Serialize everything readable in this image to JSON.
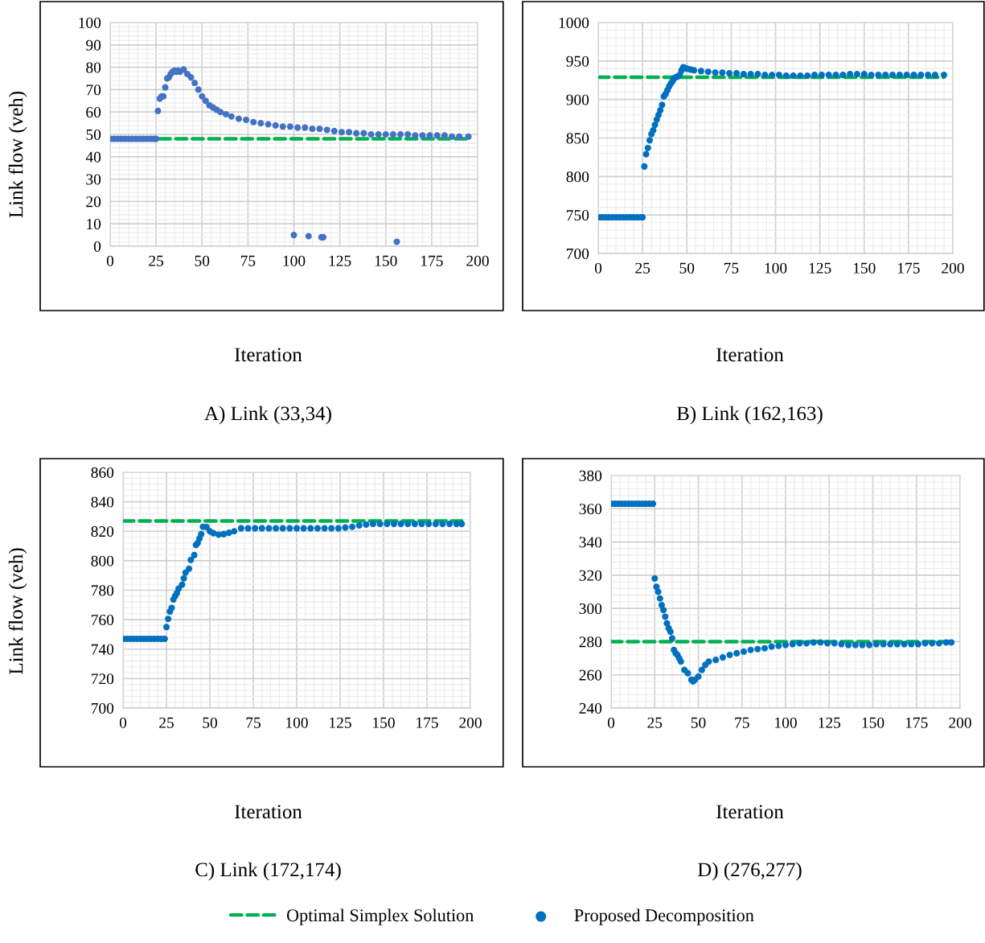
{
  "chart_data": [
    {
      "type": "scatter",
      "title": "A) Link (33,34)",
      "xlabel": "Iteration",
      "ylabel": "Link flow (veh)",
      "xlim": [
        0,
        200
      ],
      "xticks": [
        0,
        25,
        50,
        75,
        100,
        125,
        150,
        175,
        200
      ],
      "ylim": [
        0,
        100
      ],
      "yticks": [
        0,
        10,
        20,
        30,
        40,
        50,
        60,
        70,
        80,
        90,
        100
      ],
      "grid": true,
      "series": [
        {
          "type": "line",
          "marker": "none",
          "line_style": "dashed",
          "color": "#00b050",
          "x": [
            0,
            195
          ],
          "values": [
            48,
            48
          ]
        },
        {
          "marker": "circle",
          "color": "#4472c4",
          "x": [
            0,
            2,
            4,
            6,
            8,
            10,
            12,
            14,
            16,
            18,
            20,
            22,
            24,
            25,
            26,
            27,
            28,
            29,
            30,
            31,
            32,
            33,
            34,
            35,
            36,
            37,
            38,
            40,
            42,
            44,
            46,
            48,
            50,
            52,
            54,
            56,
            58,
            60,
            63,
            66,
            70,
            74,
            78,
            82,
            86,
            90,
            94,
            98,
            100,
            102,
            106,
            108,
            110,
            114,
            115,
            116,
            118,
            122,
            126,
            130,
            134,
            138,
            142,
            146,
            150,
            154,
            156,
            158,
            162,
            166,
            170,
            174,
            178,
            182,
            186,
            190,
            195
          ],
          "values": [
            48,
            48,
            48,
            48,
            48,
            48,
            48,
            48,
            48,
            48,
            48,
            48,
            48,
            48,
            60.5,
            66,
            67,
            67,
            71,
            75,
            75.5,
            77,
            78,
            78.5,
            78,
            78.5,
            78,
            79,
            77,
            75.5,
            73,
            70,
            67,
            65,
            63,
            62,
            61,
            60,
            59,
            58,
            57,
            56.5,
            55.5,
            55,
            54.5,
            54,
            53.5,
            53.5,
            5,
            53,
            53,
            4.5,
            52.5,
            52.5,
            4,
            4,
            52,
            51.5,
            51,
            51,
            50.5,
            50.5,
            50,
            50,
            50,
            50,
            2,
            50,
            50,
            49.5,
            49.5,
            49.5,
            49.5,
            49.5,
            49,
            49,
            49
          ]
        }
      ]
    },
    {
      "type": "scatter",
      "title": "B) Link (162,163)",
      "xlabel": "Iteration",
      "xlim": [
        0,
        200
      ],
      "xticks": [
        0,
        25,
        50,
        75,
        100,
        125,
        150,
        175,
        200
      ],
      "ylim": [
        700,
        1000
      ],
      "yticks": [
        700,
        750,
        800,
        850,
        900,
        950,
        1000
      ],
      "grid": true,
      "series": [
        {
          "type": "line",
          "marker": "none",
          "line_style": "dashed",
          "color": "#00b050",
          "x": [
            0,
            195
          ],
          "values": [
            929,
            929
          ]
        },
        {
          "marker": "circle",
          "color": "#0070c0",
          "x": [
            0,
            2,
            4,
            6,
            8,
            10,
            12,
            14,
            16,
            18,
            20,
            22,
            24,
            25,
            26,
            27,
            28,
            29,
            30,
            31,
            32,
            33,
            34,
            35,
            36,
            37,
            38,
            39,
            40,
            41,
            42,
            43,
            44,
            45,
            46,
            47,
            48,
            49,
            50,
            52,
            54,
            58,
            62,
            66,
            70,
            74,
            78,
            82,
            86,
            90,
            94,
            98,
            102,
            106,
            110,
            114,
            118,
            122,
            126,
            130,
            134,
            138,
            142,
            146,
            150,
            154,
            158,
            162,
            166,
            170,
            174,
            178,
            182,
            186,
            190,
            195
          ],
          "values": [
            747,
            747,
            747,
            747,
            747,
            747,
            747,
            747,
            747,
            747,
            747,
            747,
            747,
            747,
            813,
            829,
            837,
            847,
            855,
            860,
            867,
            874,
            880,
            886,
            893,
            904,
            907,
            912,
            917,
            921,
            924,
            928,
            929,
            930,
            932,
            938,
            942,
            941,
            940,
            939,
            938,
            937,
            936,
            935,
            935,
            934,
            934,
            933,
            933,
            933,
            932,
            932,
            932,
            931,
            931,
            931,
            931,
            932,
            932,
            932,
            932,
            932,
            933,
            933,
            933,
            932,
            932,
            932,
            932,
            932,
            932,
            932,
            932,
            932,
            932,
            932
          ]
        }
      ]
    },
    {
      "type": "scatter",
      "title": "C) Link (172,174)",
      "xlabel": "Iteration",
      "ylabel": "Link flow (veh)",
      "xlim": [
        0,
        200
      ],
      "xticks": [
        0,
        25,
        50,
        75,
        100,
        125,
        150,
        175,
        200
      ],
      "ylim": [
        700,
        860
      ],
      "yticks": [
        700,
        720,
        740,
        760,
        780,
        800,
        820,
        840,
        860
      ],
      "grid": true,
      "series": [
        {
          "type": "line",
          "marker": "none",
          "line_style": "dashed",
          "color": "#00b050",
          "x": [
            0,
            195
          ],
          "values": [
            827,
            827
          ]
        },
        {
          "marker": "circle",
          "color": "#0070c0",
          "x": [
            0,
            2,
            4,
            6,
            8,
            10,
            12,
            14,
            16,
            18,
            20,
            22,
            24,
            25,
            26,
            27,
            28,
            29,
            30,
            31,
            32,
            34,
            35,
            36,
            38,
            39,
            41,
            42,
            43,
            44,
            45,
            46,
            48,
            50,
            52,
            55,
            58,
            61,
            64,
            68,
            72,
            76,
            80,
            84,
            88,
            92,
            96,
            100,
            104,
            108,
            112,
            116,
            120,
            124,
            128,
            132,
            136,
            140,
            144,
            148,
            152,
            156,
            160,
            164,
            168,
            172,
            176,
            180,
            184,
            188,
            192,
            195
          ],
          "values": [
            747,
            747,
            747,
            747,
            747,
            747,
            747,
            747,
            747,
            747,
            747,
            747,
            747,
            755,
            760.5,
            765.5,
            768,
            773.7,
            776,
            778,
            781,
            783.7,
            788,
            791.9,
            794.6,
            800.5,
            803.8,
            810.7,
            812,
            815,
            818,
            823,
            822.9,
            820,
            818.7,
            817.7,
            818,
            819,
            820,
            822,
            822,
            822,
            822,
            822,
            822,
            822,
            822,
            822,
            822,
            822,
            822,
            822,
            822,
            822,
            822.5,
            823,
            824,
            824.5,
            825,
            825,
            825,
            825,
            825,
            825,
            825,
            825,
            825,
            825,
            825,
            825,
            825,
            825
          ]
        }
      ]
    },
    {
      "type": "scatter",
      "title": "D) (276,277)",
      "xlabel": "Iteration",
      "xlim": [
        0,
        200
      ],
      "xticks": [
        0,
        25,
        50,
        75,
        100,
        125,
        150,
        175,
        200
      ],
      "ylim": [
        240,
        380
      ],
      "yticks": [
        240,
        260,
        280,
        300,
        320,
        340,
        360,
        380
      ],
      "grid": true,
      "legend": "bottom",
      "series": [
        {
          "name": "Optimal Simplex Solution",
          "type": "line",
          "marker": "none",
          "line_style": "dashed",
          "color": "#00b050",
          "x": [
            0,
            195
          ],
          "values": [
            280,
            280
          ]
        },
        {
          "name": "Proposed Decomposition",
          "marker": "circle",
          "color": "#0070c0",
          "x": [
            0,
            2,
            4,
            6,
            8,
            10,
            12,
            14,
            16,
            18,
            20,
            22,
            24,
            25,
            26,
            27,
            28,
            29,
            30,
            31,
            32,
            33,
            34,
            35,
            36,
            37,
            38,
            39,
            40,
            42,
            44,
            46,
            47,
            48,
            50,
            52,
            54,
            56,
            60,
            64,
            68,
            72,
            76,
            80,
            84,
            88,
            92,
            96,
            100,
            104,
            108,
            112,
            116,
            120,
            124,
            128,
            132,
            136,
            140,
            144,
            148,
            152,
            156,
            160,
            164,
            168,
            172,
            176,
            180,
            184,
            188,
            192,
            195
          ],
          "values": [
            363,
            363,
            363,
            363,
            363,
            363,
            363,
            363,
            363,
            363,
            363,
            363,
            363,
            318,
            313,
            310,
            306,
            302,
            299,
            295,
            291,
            288,
            286,
            282,
            275,
            273,
            272,
            270,
            268,
            263,
            261,
            257,
            256,
            257,
            259,
            263,
            266,
            268,
            269,
            270.5,
            272,
            273,
            274,
            275,
            275.5,
            276,
            277,
            277.5,
            278,
            278.5,
            279,
            279,
            279.5,
            279.5,
            279,
            279,
            278.5,
            278,
            278,
            278,
            278,
            278.5,
            278.5,
            278.5,
            278.5,
            278.5,
            278.5,
            278.5,
            279,
            279,
            279,
            279.5,
            279.5
          ]
        }
      ]
    }
  ]
}
